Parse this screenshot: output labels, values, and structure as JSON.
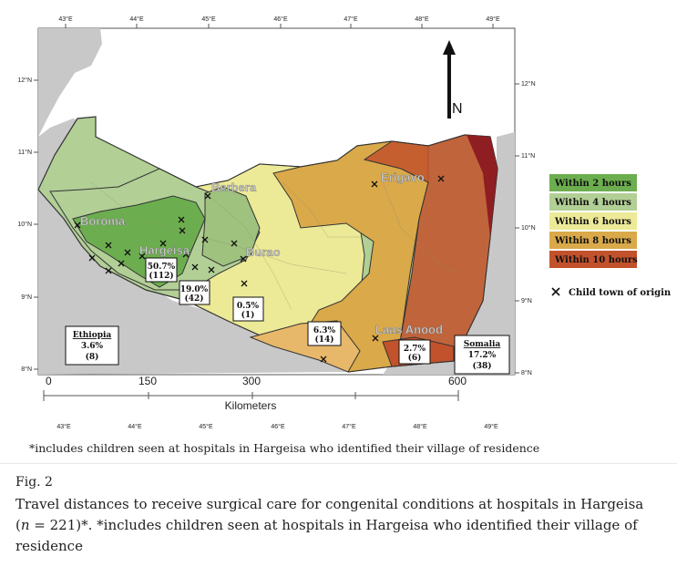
{
  "map": {
    "lon_ticks": [
      "43°E",
      "44°E",
      "45°E",
      "46°E",
      "47°E",
      "48°E",
      "49°E"
    ],
    "lat_ticks_left": [
      "12°N",
      "11°N",
      "10°N",
      "9°N",
      "8°N"
    ],
    "lat_ticks_right": [
      "12°N",
      "11°N",
      "10°N",
      "9°N",
      "8°N"
    ],
    "north_label": "N",
    "towns": {
      "berbera": "Berbera",
      "boroma": "Boroma",
      "hargeisa": "Hargeisa",
      "burao": "Burao",
      "erigavo": "Erigavo",
      "laas_anood": "Laas Anood"
    },
    "region_labels": {
      "hargeisa_pct": "50.7%",
      "hargeisa_n": "(112)",
      "band2_pct": "19.0%",
      "band2_n": "(42)",
      "band3_pct": "0.5%",
      "band3_n": "(1)",
      "band4_pct": "6.3%",
      "band4_n": "(14)",
      "band5_pct": "2.7%",
      "band5_n": "(6)",
      "ethiopia_name": "Ethiopia",
      "ethiopia_pct": "3.6%",
      "ethiopia_n": "(8)",
      "somalia_name": "Somalia",
      "somalia_pct": "17.2%",
      "somalia_n": "(38)"
    },
    "legend": [
      {
        "label": "Within 2 hours",
        "color": "#6cae4f"
      },
      {
        "label": "Within 4 hours",
        "color": "#b2cf96"
      },
      {
        "label": "Within 6 hours",
        "color": "#ecea97"
      },
      {
        "label": "Within 8 hours",
        "color": "#d9a94a"
      },
      {
        "label": "Within 10 hours",
        "color": "#c2522c"
      }
    ],
    "marker_label": "Child town of origin",
    "scale": {
      "ticks": [
        "0",
        "150",
        "300",
        "600"
      ],
      "unit": "Kilometers"
    },
    "footnote": "*includes children seen at hospitals in Hargeisa who identified their village of residence"
  },
  "caption": {
    "label": "Fig. 2",
    "text_before": "Travel distances to receive surgical care for congenital conditions at hospitals in Hargeisa (",
    "n_symbol": "n",
    "text_after": " = 221)*. *includes children seen at hospitals in Hargeisa who identified their village of residence"
  }
}
